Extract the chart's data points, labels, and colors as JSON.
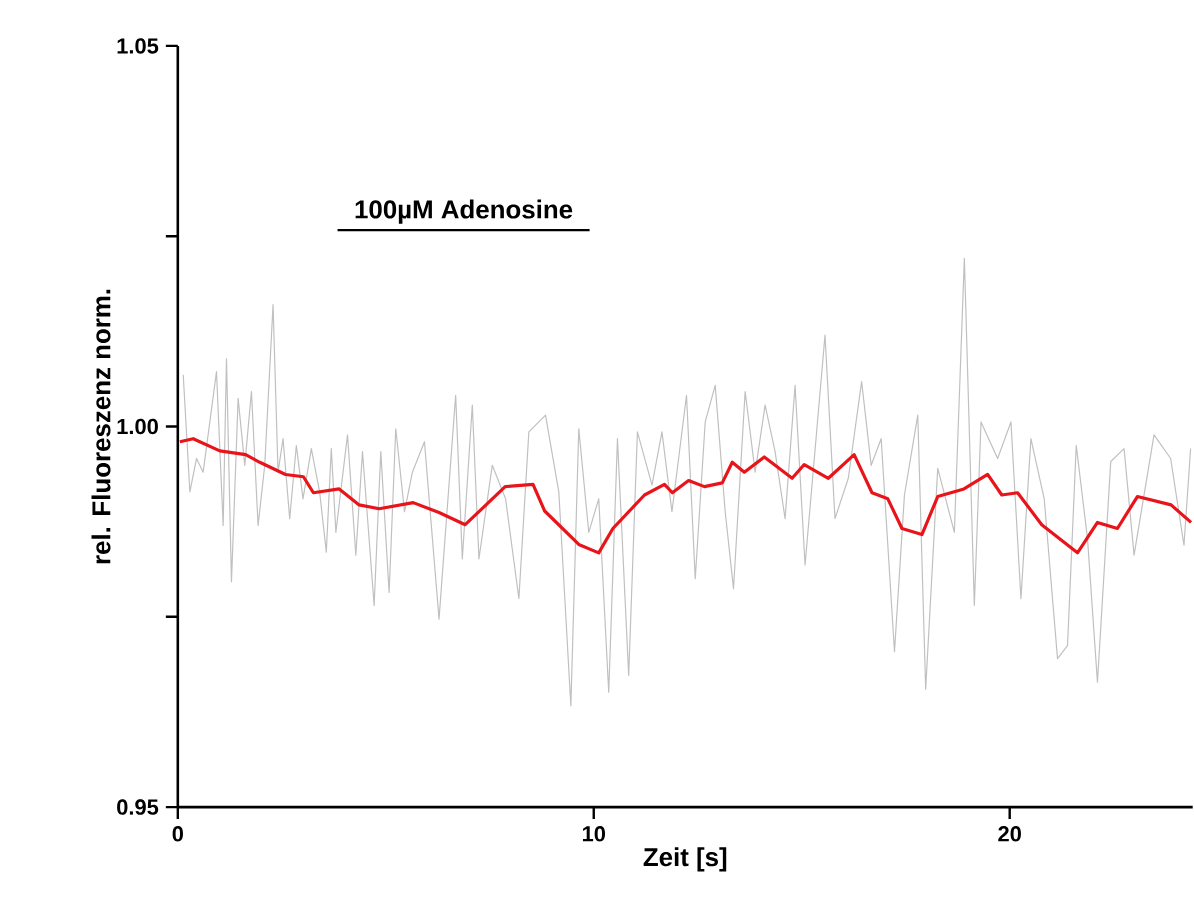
{
  "chart_data": {
    "type": "line",
    "xlabel": "Zeit [s]",
    "ylabel": "rel. Fluoreszenz norm.",
    "xlim": [
      0,
      24.4
    ],
    "ylim": [
      0.95,
      1.05
    ],
    "xticks": [
      0,
      10,
      20
    ],
    "yticks": [
      {
        "value": 0.95,
        "label": "0.95"
      },
      {
        "value": 0.975,
        "label": null
      },
      {
        "value": 1.0,
        "label": "1.00"
      },
      {
        "value": 1.025,
        "label": null
      },
      {
        "value": 1.05,
        "label": "1.05"
      }
    ],
    "grid": false,
    "marker": "none",
    "line_style": "solid",
    "annotations": [
      {
        "text": "100µM Adenosine",
        "x": 6.87,
        "y": 1.0258
      }
    ],
    "series": [
      {
        "color": "#c0c0c0",
        "x": [
          0.13,
          0.29,
          0.45,
          0.61,
          0.93,
          1.09,
          1.17,
          1.29,
          1.45,
          1.61,
          1.77,
          1.93,
          2.09,
          2.29,
          2.41,
          2.53,
          2.69,
          2.85,
          3.01,
          3.21,
          3.41,
          3.57,
          3.69,
          3.8,
          4.08,
          4.28,
          4.44,
          4.72,
          4.88,
          5.08,
          5.24,
          5.45,
          5.64,
          5.93,
          6.28,
          6.68,
          6.84,
          7.08,
          7.24,
          7.56,
          7.88,
          8.2,
          8.44,
          8.84,
          9.16,
          9.45,
          9.64,
          9.88,
          10.12,
          10.36,
          10.57,
          10.84,
          11.05,
          11.4,
          11.64,
          11.88,
          12.23,
          12.44,
          12.68,
          12.92,
          13.16,
          13.36,
          13.64,
          13.88,
          14.12,
          14.36,
          14.6,
          14.84,
          15.08,
          15.56,
          15.8,
          16.12,
          16.44,
          16.67,
          16.91,
          17.23,
          17.47,
          17.79,
          17.98,
          18.27,
          18.67,
          18.91,
          19.15,
          19.31,
          19.71,
          20.03,
          20.27,
          20.51,
          20.83,
          21.15,
          21.39,
          21.6,
          21.87,
          22.11,
          22.43,
          22.75,
          22.99,
          23.47,
          23.87,
          24.19,
          24.35
        ],
        "values": [
          1.0068,
          0.9914,
          0.9958,
          0.994,
          1.0072,
          0.987,
          1.0089,
          0.9796,
          1.0037,
          0.9949,
          1.0046,
          0.987,
          0.9949,
          1.016,
          0.994,
          0.9984,
          0.9879,
          0.9975,
          0.9905,
          0.9971,
          0.9914,
          0.9835,
          0.9971,
          0.9861,
          0.9989,
          0.9831,
          0.9967,
          0.9765,
          0.9967,
          0.9782,
          0.9997,
          0.9888,
          0.994,
          0.998,
          0.9747,
          1.0041,
          0.9826,
          1.0028,
          0.9826,
          0.9949,
          0.9905,
          0.9774,
          0.9993,
          1.0015,
          0.9914,
          0.9633,
          0.9997,
          0.9861,
          0.9905,
          0.9651,
          0.9984,
          0.9673,
          0.9993,
          0.9923,
          0.9993,
          0.9888,
          1.0041,
          0.98,
          1.0006,
          1.0054,
          0.9888,
          0.9787,
          1.0046,
          0.994,
          1.0028,
          0.9967,
          0.9879,
          1.0054,
          0.9818,
          1.012,
          0.9879,
          0.9932,
          1.0059,
          0.9949,
          0.9984,
          0.9704,
          0.991,
          1.0015,
          0.9655,
          0.9945,
          0.9861,
          1.0221,
          0.9765,
          1.0006,
          0.9958,
          1.0006,
          0.9774,
          0.9984,
          0.9905,
          0.9695,
          0.9712,
          0.9975,
          0.9853,
          0.9664,
          0.9954,
          0.9971,
          0.9831,
          0.9989,
          0.9958,
          0.9844,
          0.9971
        ]
      },
      {
        "color": "#e8141a",
        "x": [
          0.05,
          0.37,
          1.01,
          1.63,
          1.97,
          2.59,
          3.02,
          3.26,
          3.88,
          4.36,
          4.84,
          5.66,
          6.28,
          6.91,
          7.87,
          8.54,
          8.82,
          9.64,
          10.12,
          10.46,
          11.22,
          11.7,
          11.89,
          12.28,
          12.66,
          13.09,
          13.33,
          13.62,
          14.1,
          14.77,
          15.06,
          15.64,
          16.26,
          16.69,
          17.07,
          17.41,
          17.89,
          18.27,
          18.9,
          19.47,
          19.81,
          20.19,
          20.77,
          21.63,
          22.11,
          22.59,
          23.07,
          23.88,
          24.36
        ],
        "values": [
          0.998,
          0.9984,
          0.9968,
          0.9963,
          0.9953,
          0.9937,
          0.9934,
          0.9913,
          0.9918,
          0.9897,
          0.9892,
          0.99,
          0.9887,
          0.9871,
          0.9921,
          0.9924,
          0.9889,
          0.9845,
          0.9834,
          0.9866,
          0.991,
          0.9924,
          0.9913,
          0.9929,
          0.9921,
          0.9926,
          0.9953,
          0.994,
          0.996,
          0.9932,
          0.995,
          0.9932,
          0.9963,
          0.9913,
          0.9905,
          0.9866,
          0.9858,
          0.9908,
          0.9918,
          0.9937,
          0.991,
          0.9913,
          0.9871,
          0.9834,
          0.9874,
          0.9866,
          0.9908,
          0.9897,
          0.9874
        ]
      },
      {
        "color": "#000000",
        "x": [
          3.84,
          9.9
        ],
        "values": [
          1.0258,
          1.0258
        ]
      }
    ]
  }
}
